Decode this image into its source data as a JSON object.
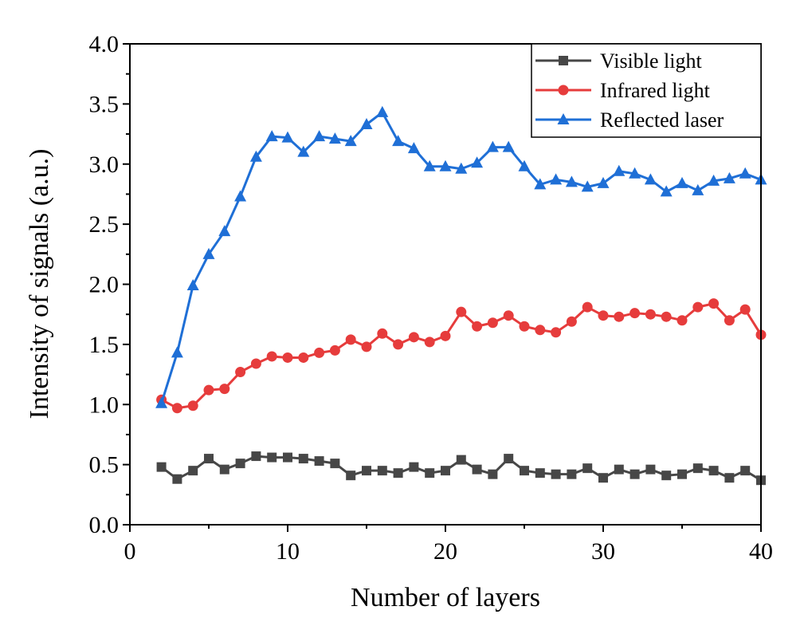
{
  "chart_data": {
    "type": "line",
    "title": "",
    "xlabel": "Number of layers",
    "ylabel": "Intensity of signals (a.u.)",
    "xlim": [
      0,
      40
    ],
    "ylim": [
      0.0,
      4.0
    ],
    "xticks": [
      0,
      10,
      20,
      30,
      40
    ],
    "yticks": [
      0.0,
      0.5,
      1.0,
      1.5,
      2.0,
      2.5,
      3.0,
      3.5,
      4.0
    ],
    "xtick_labels": [
      "0",
      "10",
      "20",
      "30",
      "40"
    ],
    "ytick_labels": [
      "0.0",
      "0.5",
      "1.0",
      "1.5",
      "2.0",
      "2.5",
      "3.0",
      "3.5",
      "4.0"
    ],
    "grid": false,
    "legend_position": "top-right",
    "x": [
      2,
      3,
      4,
      5,
      6,
      7,
      8,
      9,
      10,
      11,
      12,
      13,
      14,
      15,
      16,
      17,
      18,
      19,
      20,
      21,
      22,
      23,
      24,
      25,
      26,
      27,
      28,
      29,
      30,
      31,
      32,
      33,
      34,
      35,
      36,
      37,
      38,
      39,
      40
    ],
    "series": [
      {
        "name": "Visible light",
        "color": "#474747",
        "marker": "square",
        "values": [
          0.48,
          0.38,
          0.45,
          0.55,
          0.46,
          0.51,
          0.57,
          0.56,
          0.56,
          0.55,
          0.53,
          0.51,
          0.41,
          0.45,
          0.45,
          0.43,
          0.48,
          0.43,
          0.45,
          0.54,
          0.46,
          0.42,
          0.55,
          0.45,
          0.43,
          0.42,
          0.42,
          0.47,
          0.39,
          0.46,
          0.42,
          0.46,
          0.41,
          0.42,
          0.47,
          0.45,
          0.39,
          0.45,
          0.37
        ]
      },
      {
        "name": "Infrared light",
        "color": "#e63c3c",
        "marker": "circle",
        "values": [
          1.04,
          0.97,
          0.99,
          1.12,
          1.13,
          1.27,
          1.34,
          1.4,
          1.39,
          1.39,
          1.43,
          1.45,
          1.54,
          1.48,
          1.59,
          1.5,
          1.56,
          1.52,
          1.57,
          1.77,
          1.65,
          1.68,
          1.74,
          1.65,
          1.62,
          1.6,
          1.69,
          1.81,
          1.74,
          1.73,
          1.76,
          1.75,
          1.73,
          1.7,
          1.81,
          1.84,
          1.7,
          1.79,
          1.58
        ]
      },
      {
        "name": "Reflected laser",
        "color": "#1f6fd6",
        "marker": "triangle",
        "values": [
          1.01,
          1.43,
          1.99,
          2.25,
          2.44,
          2.73,
          3.06,
          3.23,
          3.22,
          3.1,
          3.23,
          3.21,
          3.19,
          3.33,
          3.43,
          3.19,
          3.13,
          2.98,
          2.98,
          2.96,
          3.01,
          3.14,
          3.14,
          2.98,
          2.83,
          2.87,
          2.85,
          2.81,
          2.84,
          2.94,
          2.92,
          2.87,
          2.77,
          2.84,
          2.78,
          2.86,
          2.88,
          2.92,
          2.87
        ]
      }
    ]
  }
}
